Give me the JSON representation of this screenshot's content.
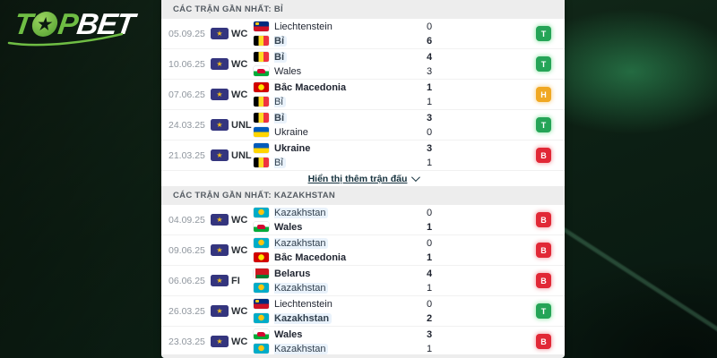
{
  "brand": {
    "logo_t": "T",
    "logo_star": "★",
    "logo_p": "P",
    "logo_bet": "BET",
    "green": "#6fbe44"
  },
  "result_colors": {
    "win": "#25a457",
    "draw": "#f0a823",
    "loss": "#e12836"
  },
  "sections": [
    {
      "title": "CÁC TRẬN GẦN NHẤT: BỈ",
      "show_more": "Hiển thị thêm trận đấu",
      "matches": [
        {
          "date": "05.09.25",
          "competition": "WC",
          "home": {
            "name": "Liechtenstein",
            "flag": "liechtenstein",
            "score": "0",
            "bold": false,
            "highlight": false
          },
          "away": {
            "name": "Bỉ",
            "flag": "belgium",
            "score": "6",
            "bold": true,
            "highlight": true
          },
          "result": {
            "letter": "T",
            "type": "win"
          }
        },
        {
          "date": "10.06.25",
          "competition": "WC",
          "home": {
            "name": "Bỉ",
            "flag": "belgium",
            "score": "4",
            "bold": true,
            "highlight": true
          },
          "away": {
            "name": "Wales",
            "flag": "wales",
            "score": "3",
            "bold": false,
            "highlight": false
          },
          "result": {
            "letter": "T",
            "type": "win"
          }
        },
        {
          "date": "07.06.25",
          "competition": "WC",
          "home": {
            "name": "Bắc Macedonia",
            "flag": "north-macedonia",
            "score": "1",
            "bold": true,
            "highlight": false
          },
          "away": {
            "name": "Bỉ",
            "flag": "belgium",
            "score": "1",
            "bold": false,
            "highlight": true
          },
          "result": {
            "letter": "H",
            "type": "draw"
          }
        },
        {
          "date": "24.03.25",
          "competition": "UNL",
          "home": {
            "name": "Bỉ",
            "flag": "belgium",
            "score": "3",
            "bold": true,
            "highlight": true
          },
          "away": {
            "name": "Ukraine",
            "flag": "ukraine",
            "score": "0",
            "bold": false,
            "highlight": false
          },
          "result": {
            "letter": "T",
            "type": "win"
          }
        },
        {
          "date": "21.03.25",
          "competition": "UNL",
          "home": {
            "name": "Ukraine",
            "flag": "ukraine",
            "score": "3",
            "bold": true,
            "highlight": false
          },
          "away": {
            "name": "Bỉ",
            "flag": "belgium",
            "score": "1",
            "bold": false,
            "highlight": true
          },
          "result": {
            "letter": "B",
            "type": "loss"
          }
        }
      ]
    },
    {
      "title": "CÁC TRẬN GẦN NHẤT: KAZAKHSTAN",
      "matches": [
        {
          "date": "04.09.25",
          "competition": "WC",
          "home": {
            "name": "Kazakhstan",
            "flag": "kazakhstan",
            "score": "0",
            "bold": false,
            "highlight": true
          },
          "away": {
            "name": "Wales",
            "flag": "wales",
            "score": "1",
            "bold": true,
            "highlight": false
          },
          "result": {
            "letter": "B",
            "type": "loss"
          }
        },
        {
          "date": "09.06.25",
          "competition": "WC",
          "home": {
            "name": "Kazakhstan",
            "flag": "kazakhstan",
            "score": "0",
            "bold": false,
            "highlight": true
          },
          "away": {
            "name": "Bắc Macedonia",
            "flag": "north-macedonia",
            "score": "1",
            "bold": true,
            "highlight": false
          },
          "result": {
            "letter": "B",
            "type": "loss"
          }
        },
        {
          "date": "06.06.25",
          "competition": "FI",
          "home": {
            "name": "Belarus",
            "flag": "belarus",
            "score": "4",
            "bold": true,
            "highlight": false
          },
          "away": {
            "name": "Kazakhstan",
            "flag": "kazakhstan",
            "score": "1",
            "bold": false,
            "highlight": true
          },
          "result": {
            "letter": "B",
            "type": "loss"
          }
        },
        {
          "date": "26.03.25",
          "competition": "WC",
          "home": {
            "name": "Liechtenstein",
            "flag": "liechtenstein",
            "score": "0",
            "bold": false,
            "highlight": false
          },
          "away": {
            "name": "Kazakhstan",
            "flag": "kazakhstan",
            "score": "2",
            "bold": true,
            "highlight": true
          },
          "result": {
            "letter": "T",
            "type": "win"
          }
        },
        {
          "date": "23.03.25",
          "competition": "WC",
          "home": {
            "name": "Wales",
            "flag": "wales",
            "score": "3",
            "bold": true,
            "highlight": false
          },
          "away": {
            "name": "Kazakhstan",
            "flag": "kazakhstan",
            "score": "1",
            "bold": false,
            "highlight": true
          },
          "result": {
            "letter": "B",
            "type": "loss"
          }
        }
      ]
    }
  ]
}
